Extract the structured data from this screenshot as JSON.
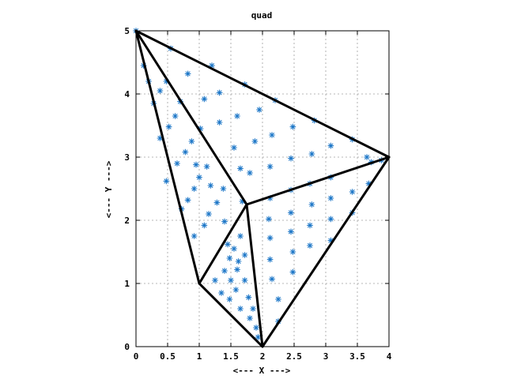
{
  "chart_data": {
    "type": "scatter",
    "title": "quad",
    "xlabel": "<--- X --->",
    "ylabel": "<--- Y --->",
    "xlim": [
      0,
      4
    ],
    "ylim": [
      0,
      5
    ],
    "x_ticks": [
      0,
      0.5,
      1,
      1.5,
      2,
      2.5,
      3,
      3.5,
      4
    ],
    "x_tick_labels": [
      "0",
      "0.5",
      "1",
      "1.5",
      "2",
      "2.5",
      "3",
      "3.5",
      "4"
    ],
    "y_ticks": [
      0,
      1,
      2,
      3,
      4,
      5
    ],
    "y_tick_labels": [
      "0",
      "1",
      "2",
      "3",
      "4",
      "5"
    ],
    "grid": true,
    "marker_color": "#1f78c8",
    "edge_color": "#000000",
    "vertices": [
      [
        0,
        5
      ],
      [
        1,
        1
      ],
      [
        2,
        0
      ],
      [
        4,
        3
      ],
      [
        1.75,
        2.25
      ]
    ],
    "edges": [
      [
        [
          0,
          5
        ],
        [
          4,
          3
        ]
      ],
      [
        [
          0,
          5
        ],
        [
          1,
          1
        ]
      ],
      [
        [
          0,
          5
        ],
        [
          1.75,
          2.25
        ]
      ],
      [
        [
          1,
          1
        ],
        [
          2,
          0
        ]
      ],
      [
        [
          2,
          0
        ],
        [
          4,
          3
        ]
      ],
      [
        [
          1.75,
          2.25
        ],
        [
          4,
          3
        ]
      ],
      [
        [
          1.75,
          2.25
        ],
        [
          1,
          1
        ]
      ],
      [
        [
          1.75,
          2.25
        ],
        [
          2,
          0
        ]
      ]
    ],
    "points": [
      [
        0,
        5
      ],
      [
        0.12,
        4.45
      ],
      [
        0.2,
        4.2
      ],
      [
        0.38,
        4.05
      ],
      [
        0.55,
        4.72
      ],
      [
        0.82,
        4.32
      ],
      [
        0.28,
        3.85
      ],
      [
        0.48,
        4.2
      ],
      [
        0.7,
        3.88
      ],
      [
        1.08,
        3.92
      ],
      [
        1.2,
        4.45
      ],
      [
        1.32,
        4.02
      ],
      [
        1.32,
        3.55
      ],
      [
        1.6,
        3.65
      ],
      [
        1.72,
        4.15
      ],
      [
        1.95,
        3.75
      ],
      [
        2.2,
        3.9
      ],
      [
        2.82,
        3.58
      ],
      [
        0.38,
        3.3
      ],
      [
        0.52,
        3.48
      ],
      [
        0.62,
        3.65
      ],
      [
        0.78,
        3.08
      ],
      [
        0.88,
        3.25
      ],
      [
        0.65,
        2.9
      ],
      [
        0.95,
        2.88
      ],
      [
        1.02,
        3.45
      ],
      [
        1.12,
        2.85
      ],
      [
        1.55,
        3.15
      ],
      [
        1.88,
        3.25
      ],
      [
        2.15,
        3.35
      ],
      [
        2.48,
        3.48
      ],
      [
        1.8,
        2.75
      ],
      [
        2.12,
        2.85
      ],
      [
        2.45,
        2.98
      ],
      [
        2.78,
        3.05
      ],
      [
        3.08,
        3.18
      ],
      [
        3.42,
        3.28
      ],
      [
        3.65,
        3.0
      ],
      [
        3.72,
        2.92
      ],
      [
        3.88,
        2.95
      ],
      [
        0.48,
        2.62
      ],
      [
        0.72,
        2.18
      ],
      [
        0.82,
        2.32
      ],
      [
        0.92,
        2.5
      ],
      [
        1.0,
        2.68
      ],
      [
        1.18,
        2.55
      ],
      [
        1.28,
        2.28
      ],
      [
        1.38,
        2.5
      ],
      [
        1.65,
        2.82
      ],
      [
        0.92,
        1.75
      ],
      [
        1.15,
        2.1
      ],
      [
        1.08,
        1.92
      ],
      [
        1.4,
        1.98
      ],
      [
        2.12,
        2.35
      ],
      [
        2.45,
        2.48
      ],
      [
        2.75,
        2.58
      ],
      [
        3.08,
        2.68
      ],
      [
        3.68,
        2.58
      ],
      [
        2.1,
        2.02
      ],
      [
        2.45,
        2.12
      ],
      [
        2.78,
        2.25
      ],
      [
        3.08,
        2.35
      ],
      [
        3.42,
        2.45
      ],
      [
        3.08,
        2.02
      ],
      [
        3.42,
        2.12
      ],
      [
        2.12,
        1.72
      ],
      [
        2.45,
        1.82
      ],
      [
        2.75,
        1.92
      ],
      [
        2.12,
        1.38
      ],
      [
        2.48,
        1.5
      ],
      [
        2.75,
        1.6
      ],
      [
        3.08,
        1.68
      ],
      [
        2.15,
        1.07
      ],
      [
        2.48,
        1.18
      ],
      [
        2.25,
        0.75
      ],
      [
        1.45,
        1.62
      ],
      [
        1.48,
        1.4
      ],
      [
        1.55,
        1.55
      ],
      [
        1.65,
        1.75
      ],
      [
        1.72,
        1.45
      ],
      [
        1.62,
        1.35
      ],
      [
        1.4,
        1.2
      ],
      [
        1.25,
        1.05
      ],
      [
        1.35,
        0.85
      ],
      [
        1.5,
        1.05
      ],
      [
        1.6,
        1.22
      ],
      [
        1.72,
        1.05
      ],
      [
        1.58,
        0.9
      ],
      [
        1.48,
        0.75
      ],
      [
        1.65,
        0.6
      ],
      [
        1.78,
        0.78
      ],
      [
        1.85,
        0.6
      ],
      [
        1.8,
        0.45
      ],
      [
        1.9,
        0.3
      ],
      [
        1.93,
        0.15
      ],
      [
        2.25,
        0.4
      ],
      [
        1.68,
        2.3
      ]
    ]
  }
}
